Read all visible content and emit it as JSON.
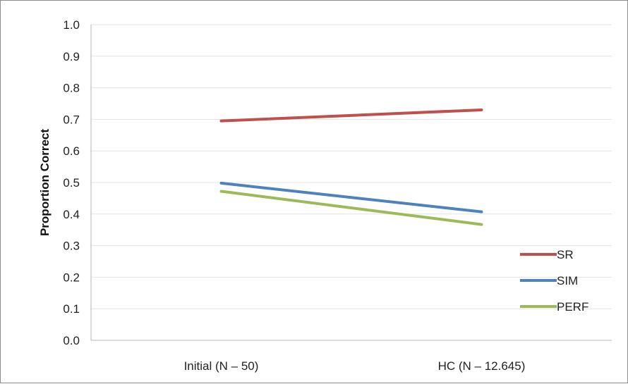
{
  "chart_data": {
    "type": "line",
    "categories": [
      "Initial (N – 50)",
      "HC (N – 12.645)"
    ],
    "series": [
      {
        "name": "SR",
        "values": [
          0.695,
          0.73
        ],
        "color": "#c0504d"
      },
      {
        "name": "SIM",
        "values": [
          0.498,
          0.407
        ],
        "color": "#4f81bd"
      },
      {
        "name": "PERF",
        "values": [
          0.472,
          0.367
        ],
        "color": "#9bbb59"
      }
    ],
    "ylabel": "Proportion Correct",
    "ylim": [
      0,
      1
    ],
    "yticks": [
      "0.0",
      "0.1",
      "0.2",
      "0.3",
      "0.4",
      "0.5",
      "0.6",
      "0.7",
      "0.8",
      "0.9",
      "1.0"
    ],
    "grid": true,
    "legend_position": "bottom-right"
  }
}
